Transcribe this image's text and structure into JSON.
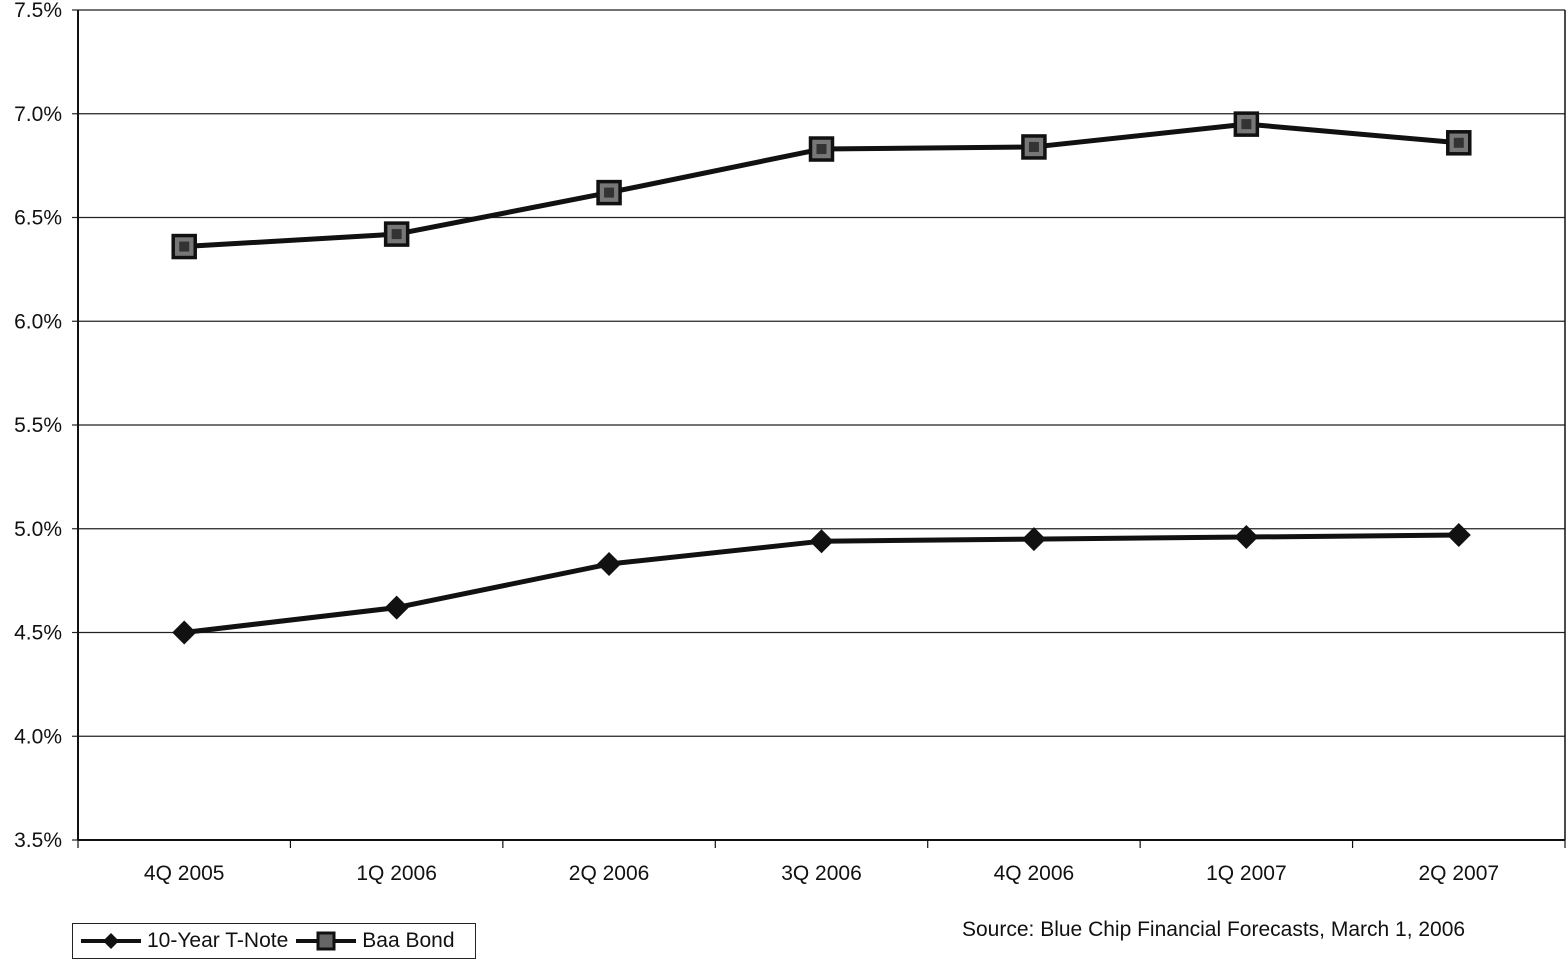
{
  "chart_data": {
    "type": "line",
    "title": "",
    "xlabel": "",
    "ylabel": "",
    "categories": [
      "4Q 2005",
      "1Q 2006",
      "2Q 2006",
      "3Q 2006",
      "4Q 2006",
      "1Q 2007",
      "2Q 2007"
    ],
    "series": [
      {
        "name": "10-Year T-Note",
        "marker": "diamond",
        "color": "#111111",
        "values": [
          4.5,
          4.62,
          4.83,
          4.94,
          4.95,
          4.96,
          4.97
        ]
      },
      {
        "name": "Baa Bond",
        "marker": "square",
        "color": "#111111",
        "values": [
          6.36,
          6.42,
          6.62,
          6.83,
          6.84,
          6.95,
          6.86
        ]
      }
    ],
    "ylim": [
      3.5,
      7.5
    ],
    "yticks": [
      "3.5%",
      "4.0%",
      "4.5%",
      "5.0%",
      "5.5%",
      "6.0%",
      "6.5%",
      "7.0%",
      "7.5%"
    ],
    "grid": true,
    "legend_position": "bottom-left"
  },
  "legend": {
    "items": [
      "10-Year T-Note",
      "Baa Bond"
    ]
  },
  "source": "Source: Blue Chip Financial Forecasts, March 1, 2006"
}
